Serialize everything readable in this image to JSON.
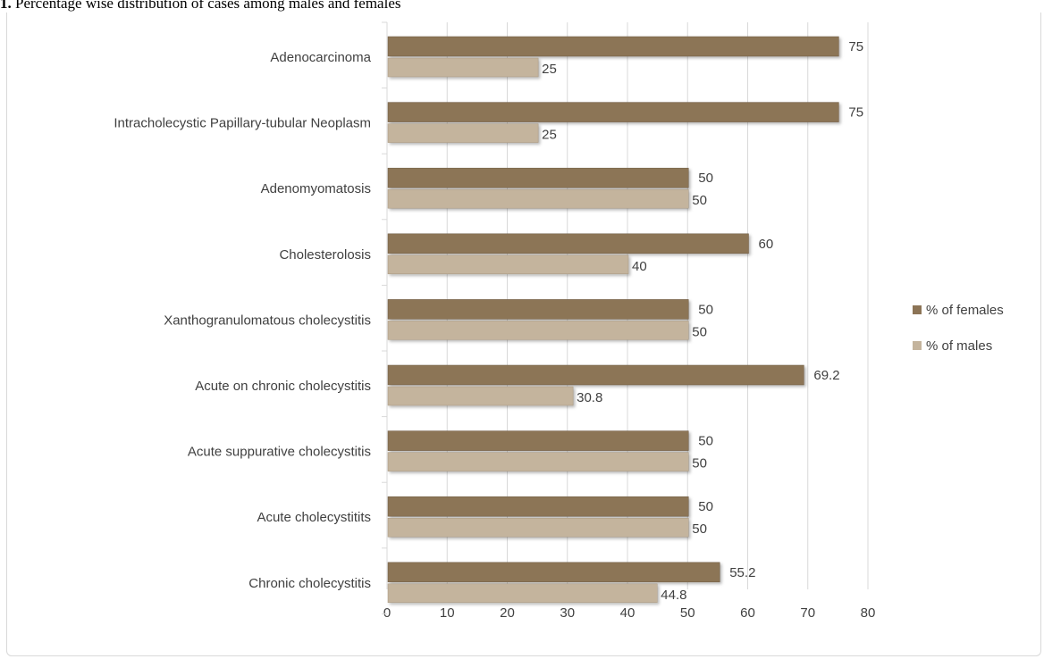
{
  "figure_caption": {
    "number": "1.",
    "text": "Percentage wise distribution of cases among males and females"
  },
  "colors": {
    "females": "#8c7456",
    "females_dark": "#6e5a42",
    "males": "#c4b49d",
    "males_dark": "#a7967f",
    "gridline": "#d9d9d9",
    "label_text": "#404040"
  },
  "chart_data": {
    "type": "bar",
    "orientation": "horizontal",
    "categories": [
      "Adenocarcinoma",
      "Intracholecystic Papillary-tubular Neoplasm",
      "Adenomyomatosis",
      "Cholesterolosis",
      "Xanthogranulomatous cholecystitis",
      "Acute on chronic cholecystitis",
      "Acute suppurative cholecystitis",
      "Acute cholecystitits",
      "Chronic cholecystitis"
    ],
    "series": [
      {
        "name": "% of females",
        "values": [
          75,
          75,
          50,
          60,
          50,
          69.2,
          50,
          50,
          55.2
        ],
        "labels": [
          "75",
          "75",
          "50",
          "60",
          "50",
          "69.2",
          "50",
          "50",
          "55.2"
        ]
      },
      {
        "name": "% of males",
        "values": [
          25,
          25,
          50,
          40,
          50,
          30.8,
          50,
          50,
          44.8
        ],
        "labels": [
          "25",
          "25",
          "50",
          "40",
          "50",
          "30.8",
          "50",
          "50",
          "44.8"
        ]
      }
    ],
    "xlim": [
      0,
      80
    ],
    "xticks": [
      "0",
      "10",
      "20",
      "30",
      "40",
      "50",
      "60",
      "70",
      "80"
    ],
    "grid": true,
    "legend_position": "right"
  }
}
